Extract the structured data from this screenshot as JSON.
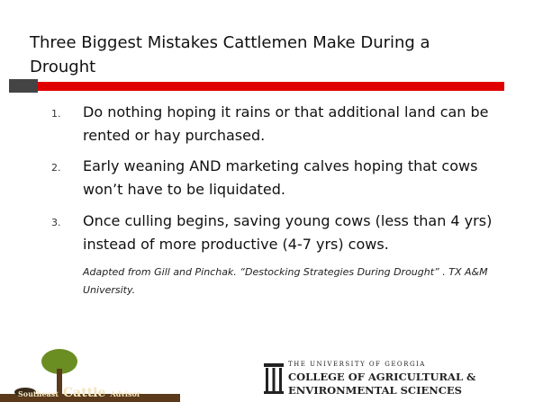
{
  "slide": {
    "title": "Three Biggest Mistakes Cattlemen Make During a Drought",
    "items": [
      {
        "number": "1.",
        "text": "Do nothing hoping it rains or that additional land can be rented or hay purchased."
      },
      {
        "number": "2.",
        "text": "Early weaning AND marketing calves hoping that cows won’t have to be liquidated."
      },
      {
        "number": "3.",
        "text": "Once culling begins, saving young cows (less than 4 yrs) instead of more productive (4-7 yrs) cows."
      }
    ],
    "citation": "Adapted from Gill and Pinchak.  “Destocking Strategies During Drought” . TX A&M University.",
    "left_logo": {
      "word1": "Southeast",
      "word2": "Cattle",
      "word3": "Advisor"
    },
    "right_logo": {
      "line1": "THE UNIVERSITY OF GEORGIA",
      "line2": "COLLEGE OF AGRICULTURAL &",
      "line3": "ENVIRONMENTAL SCIENCES"
    }
  }
}
